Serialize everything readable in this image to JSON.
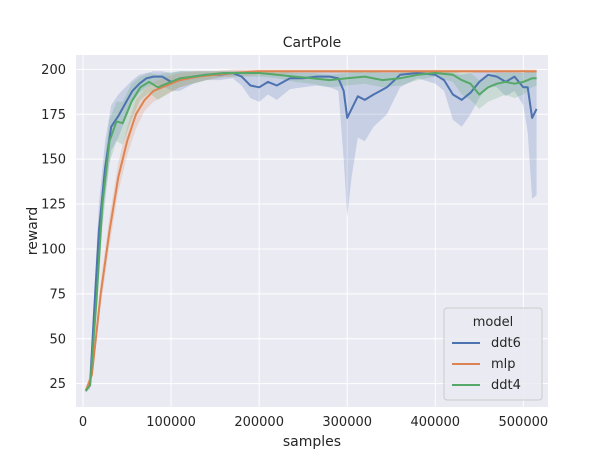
{
  "chart_data": {
    "type": "line",
    "title": "CartPole",
    "xlabel": "samples",
    "ylabel": "reward",
    "xlim": [
      -8000,
      528000
    ],
    "ylim": [
      12,
      208
    ],
    "x_ticks": [
      0,
      100000,
      200000,
      300000,
      400000,
      500000
    ],
    "x_tick_labels": [
      "0",
      "100000",
      "200000",
      "300000",
      "400000",
      "500000"
    ],
    "y_ticks": [
      25,
      50,
      75,
      100,
      125,
      150,
      175,
      200
    ],
    "y_tick_labels": [
      "25",
      "50",
      "75",
      "100",
      "125",
      "150",
      "175",
      "200"
    ],
    "grid": true,
    "legend_title": "model",
    "legend_position": "bottom-right",
    "colors": {
      "ddt6": "#4c72b0",
      "mlp": "#dd8452",
      "ddt4": "#55a868",
      "background": "#eaeaf2",
      "grid": "#ffffff"
    },
    "series": [
      {
        "name": "ddt6",
        "color": "#4c72b0",
        "x": [
          3000,
          8000,
          12000,
          18000,
          25000,
          32000,
          40000,
          48000,
          56000,
          64000,
          72000,
          80000,
          90000,
          100000,
          110000,
          125000,
          140000,
          155000,
          170000,
          180000,
          190000,
          200000,
          210000,
          220000,
          235000,
          250000,
          265000,
          280000,
          290000,
          296000,
          300000,
          305000,
          312000,
          320000,
          330000,
          345000,
          360000,
          380000,
          400000,
          410000,
          420000,
          430000,
          440000,
          450000,
          460000,
          470000,
          480000,
          490000,
          500000,
          505000,
          510000,
          515000
        ],
        "y": [
          21,
          25,
          60,
          110,
          145,
          168,
          174,
          181,
          188,
          192,
          195,
          196,
          196,
          193,
          194,
          196,
          197,
          197,
          198,
          196,
          191,
          190,
          193,
          191,
          195,
          195,
          196,
          196,
          195,
          188,
          173,
          178,
          185,
          183,
          186,
          190,
          197,
          198,
          197,
          194,
          186,
          183,
          187,
          193,
          197,
          196,
          193,
          196,
          190,
          190,
          173,
          178
        ],
        "lower": [
          20,
          23,
          50,
          95,
          130,
          155,
          162,
          172,
          182,
          187,
          190,
          192,
          191,
          188,
          188,
          192,
          194,
          194,
          195,
          191,
          184,
          182,
          186,
          183,
          189,
          190,
          191,
          190,
          188,
          150,
          118,
          140,
          162,
          160,
          168,
          175,
          190,
          195,
          192,
          188,
          172,
          168,
          175,
          184,
          191,
          190,
          185,
          188,
          180,
          165,
          128,
          130
        ],
        "upper": [
          22,
          27,
          70,
          125,
          160,
          180,
          186,
          190,
          194,
          197,
          198,
          199,
          199,
          198,
          199,
          199,
          199,
          199,
          199,
          199,
          198,
          197,
          199,
          198,
          199,
          199,
          199,
          199,
          199,
          199,
          199,
          199,
          199,
          198,
          199,
          199,
          199,
          199,
          199,
          199,
          198,
          197,
          198,
          199,
          199,
          199,
          199,
          199,
          198,
          199,
          199,
          199
        ]
      },
      {
        "name": "mlp",
        "color": "#dd8452",
        "x": [
          3000,
          10000,
          20000,
          30000,
          40000,
          50000,
          60000,
          70000,
          80000,
          95000,
          110000,
          130000,
          150000,
          170000,
          200000,
          250000,
          300000,
          350000,
          400000,
          450000,
          500000,
          515000
        ],
        "y": [
          21,
          30,
          75,
          110,
          140,
          160,
          175,
          183,
          188,
          191,
          194,
          196,
          197,
          198,
          199,
          199,
          199,
          199,
          199,
          199,
          199,
          199
        ],
        "lower": [
          20,
          27,
          68,
          102,
          132,
          152,
          167,
          177,
          182,
          186,
          190,
          193,
          195,
          196,
          197,
          198,
          198,
          198,
          198,
          198,
          198,
          198
        ],
        "upper": [
          22,
          34,
          82,
          118,
          148,
          168,
          183,
          189,
          193,
          196,
          198,
          199,
          199,
          200,
          200,
          200,
          200,
          200,
          200,
          200,
          200,
          200
        ]
      },
      {
        "name": "ddt4",
        "color": "#55a868",
        "x": [
          3000,
          8000,
          15000,
          22000,
          30000,
          38000,
          45000,
          55000,
          65000,
          75000,
          85000,
          95000,
          110000,
          125000,
          140000,
          160000,
          180000,
          200000,
          220000,
          240000,
          260000,
          280000,
          300000,
          320000,
          340000,
          360000,
          380000,
          400000,
          420000,
          430000,
          440000,
          450000,
          460000,
          470000,
          480000,
          490000,
          500000,
          510000,
          515000
        ],
        "y": [
          21,
          24,
          70,
          125,
          160,
          171,
          170,
          182,
          190,
          193,
          190,
          192,
          195,
          196,
          197,
          198,
          198,
          198,
          197,
          196,
          195,
          194,
          195,
          196,
          194,
          195,
          197,
          198,
          197,
          194,
          192,
          186,
          190,
          192,
          193,
          192,
          193,
          195,
          195
        ],
        "lower": [
          20,
          22,
          60,
          112,
          148,
          160,
          158,
          172,
          183,
          187,
          183,
          186,
          190,
          192,
          194,
          196,
          196,
          196,
          195,
          193,
          192,
          190,
          191,
          192,
          190,
          191,
          194,
          196,
          193,
          186,
          183,
          178,
          182,
          184,
          186,
          184,
          186,
          190,
          191
        ],
        "upper": [
          22,
          26,
          80,
          138,
          172,
          182,
          182,
          192,
          196,
          198,
          197,
          198,
          199,
          199,
          199,
          199,
          199,
          199,
          199,
          198,
          198,
          197,
          198,
          199,
          198,
          198,
          199,
          199,
          199,
          198,
          198,
          194,
          197,
          198,
          198,
          198,
          198,
          199,
          199
        ]
      }
    ]
  }
}
